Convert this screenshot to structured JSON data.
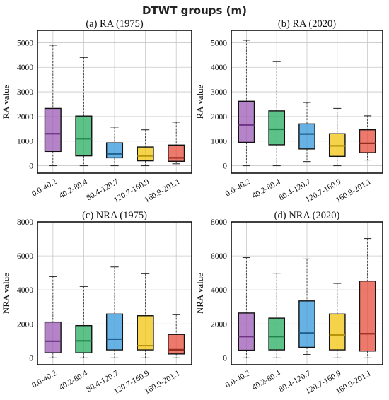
{
  "figure": {
    "title": "DTWT groups (m)"
  },
  "chart_data": [
    {
      "type": "box",
      "title": "(a) RA (1975)",
      "ylabel": "RA value",
      "ylim": [
        -300,
        5500
      ],
      "yticks": [
        0,
        1000,
        2000,
        3000,
        4000,
        5000
      ],
      "categories": [
        "0.0-40.2",
        "40.2-80.4",
        "80.4-120.7",
        "120.7-160.9",
        "160.9-201.1"
      ],
      "colors": [
        "#9b59b6",
        "#27ae60",
        "#3498db",
        "#f1c40f",
        "#e74c3c"
      ],
      "median_colors": [
        "#6c3483",
        "#1e8449",
        "#21618c",
        "#b7950b",
        "#922b21"
      ],
      "boxes": [
        {
          "min": 0,
          "q1": 580,
          "median": 1300,
          "q3": 2330,
          "max": 4900
        },
        {
          "min": 0,
          "q1": 400,
          "median": 1100,
          "q3": 2020,
          "max": 4400
        },
        {
          "min": 0,
          "q1": 320,
          "median": 480,
          "q3": 930,
          "max": 1570
        },
        {
          "min": 0,
          "q1": 200,
          "median": 400,
          "q3": 760,
          "max": 1460
        },
        {
          "min": 80,
          "q1": 180,
          "median": 320,
          "q3": 840,
          "max": 1770
        }
      ]
    },
    {
      "type": "box",
      "title": "(b) RA (2020)",
      "ylabel": "RA value",
      "ylim": [
        -300,
        5500
      ],
      "yticks": [
        0,
        1000,
        2000,
        3000,
        4000,
        5000
      ],
      "categories": [
        "0.0-40.2",
        "40.2-80.4",
        "80.4-120.7",
        "120.7-160.9",
        "160.9-201.1"
      ],
      "colors": [
        "#9b59b6",
        "#27ae60",
        "#3498db",
        "#f1c40f",
        "#e74c3c"
      ],
      "median_colors": [
        "#6c3483",
        "#1e8449",
        "#21618c",
        "#b7950b",
        "#922b21"
      ],
      "boxes": [
        {
          "min": 0,
          "q1": 950,
          "median": 1660,
          "q3": 2620,
          "max": 5100
        },
        {
          "min": 0,
          "q1": 850,
          "median": 1480,
          "q3": 2230,
          "max": 4230
        },
        {
          "min": 170,
          "q1": 680,
          "median": 1290,
          "q3": 1700,
          "max": 2570
        },
        {
          "min": 0,
          "q1": 380,
          "median": 810,
          "q3": 1300,
          "max": 2330
        },
        {
          "min": 230,
          "q1": 530,
          "median": 910,
          "q3": 1460,
          "max": 2030
        }
      ]
    },
    {
      "type": "box",
      "title": "(c) NRA (1975)",
      "ylabel": "NRA value",
      "ylim": [
        -400,
        8000
      ],
      "yticks": [
        0,
        2000,
        4000,
        6000,
        8000
      ],
      "categories": [
        "0.0-40.2",
        "40.2-80.4",
        "80.4-120.7",
        "120.7-160.9",
        "160.9-201.1"
      ],
      "colors": [
        "#9b59b6",
        "#27ae60",
        "#3498db",
        "#f1c40f",
        "#e74c3c"
      ],
      "median_colors": [
        "#6c3483",
        "#1e8449",
        "#21618c",
        "#b7950b",
        "#922b21"
      ],
      "boxes": [
        {
          "min": 0,
          "q1": 300,
          "median": 980,
          "q3": 2110,
          "max": 4780
        },
        {
          "min": 0,
          "q1": 300,
          "median": 1000,
          "q3": 1900,
          "max": 4200
        },
        {
          "min": 0,
          "q1": 470,
          "median": 1100,
          "q3": 2580,
          "max": 5350
        },
        {
          "min": 0,
          "q1": 470,
          "median": 720,
          "q3": 2480,
          "max": 4950
        },
        {
          "min": 0,
          "q1": 230,
          "median": 480,
          "q3": 1380,
          "max": 2540
        }
      ]
    },
    {
      "type": "box",
      "title": "(d) NRA (2020)",
      "ylabel": "NRA value",
      "ylim": [
        -400,
        8000
      ],
      "yticks": [
        0,
        2000,
        4000,
        6000,
        8000
      ],
      "categories": [
        "0.0-40.2",
        "40.2-80.4",
        "80.4-120.7",
        "120.7-160.9",
        "160.9-201.1"
      ],
      "colors": [
        "#9b59b6",
        "#27ae60",
        "#3498db",
        "#f1c40f",
        "#e74c3c"
      ],
      "median_colors": [
        "#6c3483",
        "#1e8449",
        "#21618c",
        "#b7950b",
        "#922b21"
      ],
      "boxes": [
        {
          "min": 0,
          "q1": 450,
          "median": 1250,
          "q3": 2640,
          "max": 5900
        },
        {
          "min": 0,
          "q1": 470,
          "median": 1250,
          "q3": 2340,
          "max": 4980
        },
        {
          "min": 200,
          "q1": 620,
          "median": 1460,
          "q3": 3350,
          "max": 5820
        },
        {
          "min": 0,
          "q1": 470,
          "median": 1350,
          "q3": 2580,
          "max": 4380
        },
        {
          "min": 0,
          "q1": 400,
          "median": 1420,
          "q3": 4520,
          "max": 7020
        }
      ]
    }
  ]
}
